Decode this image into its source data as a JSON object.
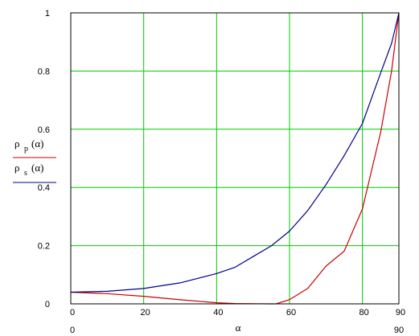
{
  "chart_data": {
    "type": "line",
    "xlim": [
      0,
      90
    ],
    "ylim": [
      0,
      1
    ],
    "x_ticks": [
      0,
      20,
      40,
      60,
      80,
      90
    ],
    "y_ticks": [
      0,
      0.2,
      0.4,
      0.6,
      0.8,
      1
    ],
    "x_tick_labels": [
      "0",
      "20",
      "40",
      "60",
      "80",
      "90"
    ],
    "y_tick_labels": [
      "0",
      "0.2",
      "0.4",
      "0.6",
      "0.8",
      "1"
    ],
    "x_range_labels": {
      "min": "0",
      "max": "90"
    },
    "xlabel": "α",
    "grid": true,
    "grid_color": "#00cc00",
    "series": [
      {
        "name": "ρ p(α)",
        "legend_main": "ρ",
        "legend_sub": "p",
        "legend_arg": "(α)",
        "color": "#cc0000",
        "x": [
          0,
          10,
          20,
          30,
          40,
          45,
          50,
          55,
          56.3,
          60,
          65,
          70,
          75,
          80,
          85,
          88,
          90
        ],
        "y": [
          0.04,
          0.035,
          0.026,
          0.014,
          0.004,
          0.0011,
          0.0006,
          0.0001,
          0,
          0.0145,
          0.053,
          0.1296,
          0.1813,
          0.3264,
          0.5896,
          0.8,
          1
        ]
      },
      {
        "name": "ρ s(α)",
        "legend_main": "ρ",
        "legend_sub": "s",
        "legend_arg": "(α)",
        "color": "#00008b",
        "x": [
          0,
          10,
          20,
          30,
          40,
          45,
          50,
          55,
          60,
          65,
          70,
          75,
          80,
          85,
          88,
          90
        ],
        "y": [
          0.04,
          0.0432,
          0.0528,
          0.0721,
          0.1042,
          0.1254,
          0.1623,
          0.1993,
          0.25,
          0.3207,
          0.4093,
          0.5093,
          0.6203,
          0.7933,
          0.895,
          1
        ]
      }
    ]
  }
}
